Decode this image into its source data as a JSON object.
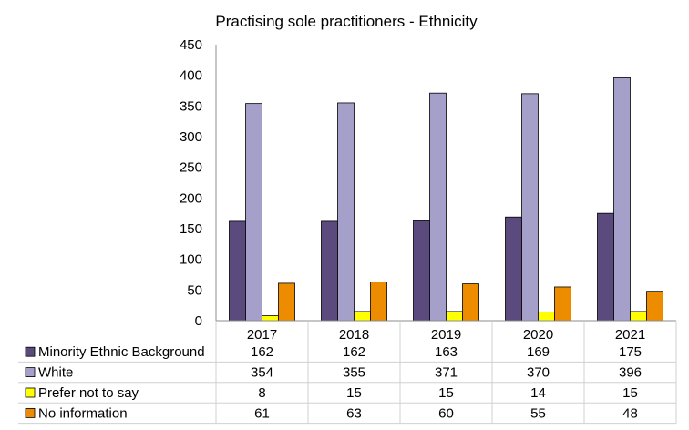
{
  "chart_data": {
    "type": "bar",
    "title": "Practising sole practitioners - Ethnicity",
    "categories": [
      "2017",
      "2018",
      "2019",
      "2020",
      "2021"
    ],
    "series": [
      {
        "name": "Minority Ethnic Background",
        "color": "#5b4a7d",
        "values": [
          162,
          162,
          163,
          169,
          175
        ]
      },
      {
        "name": "White",
        "color": "#a4a0c9",
        "values": [
          354,
          355,
          371,
          370,
          396
        ]
      },
      {
        "name": "Prefer not to say",
        "color": "#ffff00",
        "values": [
          8,
          15,
          15,
          14,
          15
        ]
      },
      {
        "name": "No information",
        "color": "#ee8c00",
        "values": [
          61,
          63,
          60,
          55,
          48
        ]
      }
    ],
    "ylim": [
      0,
      450
    ],
    "yticks": [
      "0",
      "50",
      "100",
      "150",
      "200",
      "250",
      "300",
      "350",
      "400",
      "450"
    ],
    "grid": false,
    "legend": "data-table-below"
  }
}
